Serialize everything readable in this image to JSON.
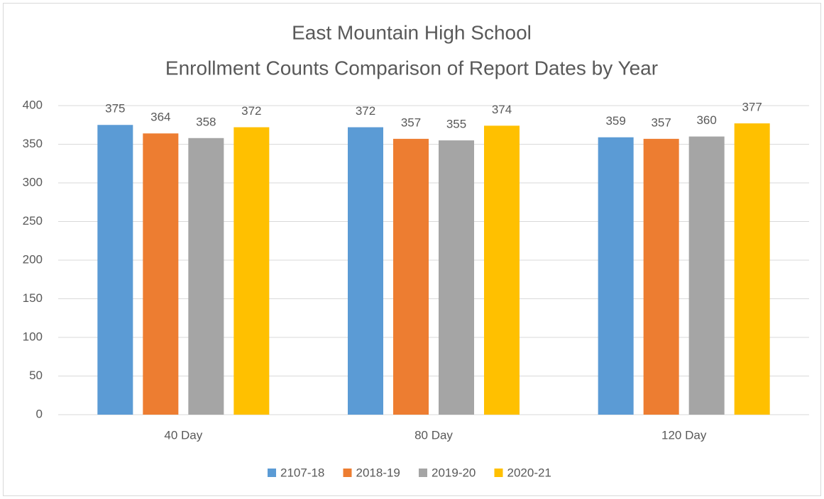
{
  "chart_data": {
    "type": "bar",
    "title": "East Mountain High School",
    "subtitle": "Enrollment Counts Comparison of Report Dates by Year",
    "categories": [
      "40 Day",
      "80 Day",
      "120 Day"
    ],
    "series": [
      {
        "name": "2107-18",
        "color": "#5b9bd5",
        "values": [
          375,
          372,
          359
        ]
      },
      {
        "name": "2018-19",
        "color": "#ed7d31",
        "values": [
          364,
          357,
          357
        ]
      },
      {
        "name": "2019-20",
        "color": "#a5a5a5",
        "values": [
          358,
          355,
          360
        ]
      },
      {
        "name": "2020-21",
        "color": "#ffc000",
        "values": [
          372,
          374,
          377
        ]
      }
    ],
    "ylim": [
      0,
      400
    ],
    "yticks": [
      0,
      50,
      100,
      150,
      200,
      250,
      300,
      350,
      400
    ],
    "grid": true,
    "legend": "bottom"
  }
}
